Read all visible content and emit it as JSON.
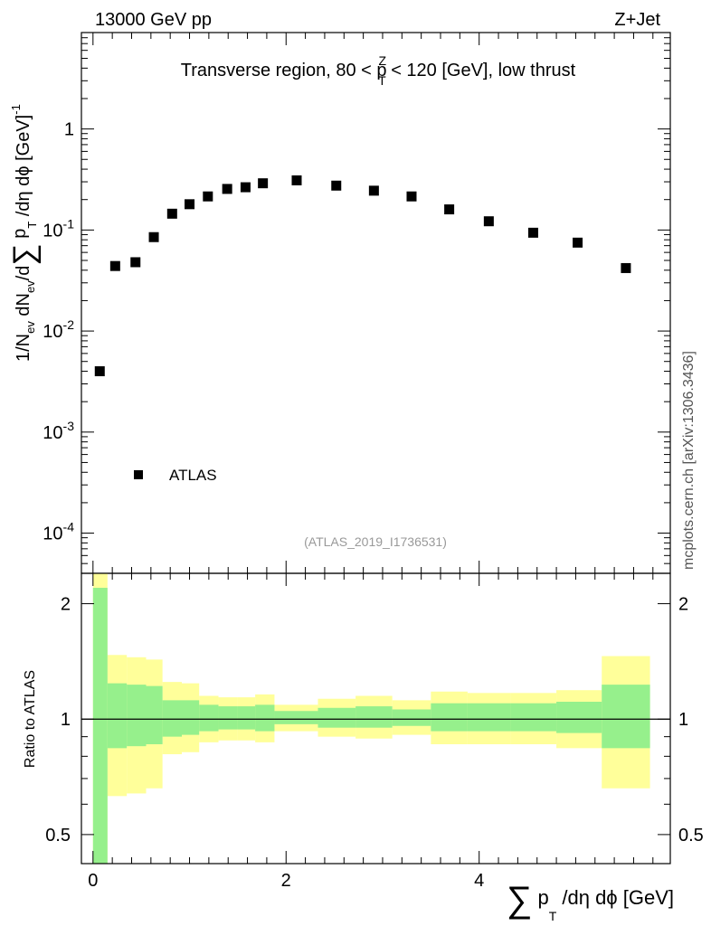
{
  "header": {
    "energy_label": "13000 GeV pp",
    "process_label": "Z+Jet",
    "side_label": "mcplots.cern.ch [arXiv:1306.3436]",
    "watermark": "(ATLAS_2019_I1736531)"
  },
  "main_plot": {
    "title_parts": {
      "pre": "Transverse region, 80 < p",
      "sup": "Z",
      "sub": "T",
      "post": " < 120 [GeV], low thrust"
    },
    "ylabel_parts": {
      "a": "1/N",
      "a_sub": "ev",
      "b": " dN",
      "b_sub": "ev",
      "c": "/d",
      "sum": "∑",
      "d": " p",
      "d_sub": "T",
      "e": " /dη dϕ  [GeV]",
      "e_sup": "-1"
    },
    "ytick_labels": [
      {
        "base": "10",
        "exp": "-4"
      },
      {
        "base": "10",
        "exp": "-3"
      },
      {
        "base": "10",
        "exp": "-2"
      },
      {
        "base": "10",
        "exp": "-1"
      },
      {
        "base": "1",
        "exp": ""
      }
    ],
    "legend": {
      "label": "ATLAS",
      "marker": "black-square"
    }
  },
  "ratio_plot": {
    "ylabel": "Ratio to ATLAS",
    "ytick_labels": [
      "0.5",
      "1",
      "2"
    ]
  },
  "xaxis": {
    "tick_labels": [
      "0",
      "2",
      "4"
    ],
    "label_parts": {
      "sum": "∑",
      "p": " p",
      "p_sub": "T",
      "rest": " /dη dϕ [GeV]"
    }
  },
  "chart_data": [
    {
      "type": "scatter",
      "panel": "main",
      "yscale": "log",
      "xlim": [
        -0.12,
        5.98
      ],
      "ylim": [
        4e-05,
        9
      ],
      "xlabel": "∑ pT /dη dϕ [GeV]",
      "ylabel": "1/Nev dNev/d∑ pT /dη dϕ [GeV]^-1",
      "series": [
        {
          "name": "ATLAS",
          "x": [
            0.07,
            0.23,
            0.44,
            0.63,
            0.82,
            1.0,
            1.19,
            1.39,
            1.58,
            1.76,
            2.11,
            2.52,
            2.91,
            3.3,
            3.69,
            4.1,
            4.56,
            5.02,
            5.52
          ],
          "y": [
            0.004,
            0.044,
            0.048,
            0.085,
            0.145,
            0.18,
            0.215,
            0.255,
            0.265,
            0.29,
            0.31,
            0.275,
            0.245,
            0.215,
            0.16,
            0.122,
            0.094,
            0.075,
            0.042
          ]
        }
      ]
    },
    {
      "type": "area",
      "panel": "ratio",
      "yscale": "log",
      "xlim": [
        -0.12,
        5.98
      ],
      "ylim": [
        0.42,
        2.4
      ],
      "ylabel": "Ratio to ATLAS",
      "reference_line": 1,
      "bins": [
        {
          "x0": 0.0,
          "x1": 0.15,
          "green": [
            0.33,
            2.2
          ],
          "yellow": [
            0.33,
            2.45
          ]
        },
        {
          "x0": 0.15,
          "x1": 0.35,
          "green": [
            0.84,
            1.24
          ],
          "yellow": [
            0.63,
            1.47
          ]
        },
        {
          "x0": 0.35,
          "x1": 0.55,
          "green": [
            0.85,
            1.23
          ],
          "yellow": [
            0.64,
            1.45
          ]
        },
        {
          "x0": 0.55,
          "x1": 0.72,
          "green": [
            0.86,
            1.22
          ],
          "yellow": [
            0.66,
            1.43
          ]
        },
        {
          "x0": 0.72,
          "x1": 0.92,
          "green": [
            0.9,
            1.12
          ],
          "yellow": [
            0.81,
            1.25
          ]
        },
        {
          "x0": 0.92,
          "x1": 1.1,
          "green": [
            0.91,
            1.12
          ],
          "yellow": [
            0.82,
            1.24
          ]
        },
        {
          "x0": 1.1,
          "x1": 1.3,
          "green": [
            0.93,
            1.09
          ],
          "yellow": [
            0.87,
            1.15
          ]
        },
        {
          "x0": 1.3,
          "x1": 1.5,
          "green": [
            0.94,
            1.08
          ],
          "yellow": [
            0.88,
            1.14
          ]
        },
        {
          "x0": 1.5,
          "x1": 1.68,
          "green": [
            0.94,
            1.08
          ],
          "yellow": [
            0.88,
            1.14
          ]
        },
        {
          "x0": 1.68,
          "x1": 1.88,
          "green": [
            0.93,
            1.09
          ],
          "yellow": [
            0.87,
            1.16
          ]
        },
        {
          "x0": 1.88,
          "x1": 2.33,
          "green": [
            0.97,
            1.05
          ],
          "yellow": [
            0.93,
            1.09
          ]
        },
        {
          "x0": 2.33,
          "x1": 2.72,
          "green": [
            0.95,
            1.07
          ],
          "yellow": [
            0.9,
            1.13
          ]
        },
        {
          "x0": 2.72,
          "x1": 3.1,
          "green": [
            0.95,
            1.08
          ],
          "yellow": [
            0.89,
            1.15
          ]
        },
        {
          "x0": 3.1,
          "x1": 3.5,
          "green": [
            0.96,
            1.06
          ],
          "yellow": [
            0.91,
            1.12
          ]
        },
        {
          "x0": 3.5,
          "x1": 3.88,
          "green": [
            0.93,
            1.1
          ],
          "yellow": [
            0.86,
            1.18
          ]
        },
        {
          "x0": 3.88,
          "x1": 4.33,
          "green": [
            0.93,
            1.1
          ],
          "yellow": [
            0.86,
            1.17
          ]
        },
        {
          "x0": 4.33,
          "x1": 4.8,
          "green": [
            0.93,
            1.1
          ],
          "yellow": [
            0.86,
            1.17
          ]
        },
        {
          "x0": 4.8,
          "x1": 5.27,
          "green": [
            0.92,
            1.11
          ],
          "yellow": [
            0.84,
            1.19
          ]
        },
        {
          "x0": 5.27,
          "x1": 5.77,
          "green": [
            0.84,
            1.23
          ],
          "yellow": [
            0.66,
            1.46
          ]
        }
      ]
    }
  ]
}
